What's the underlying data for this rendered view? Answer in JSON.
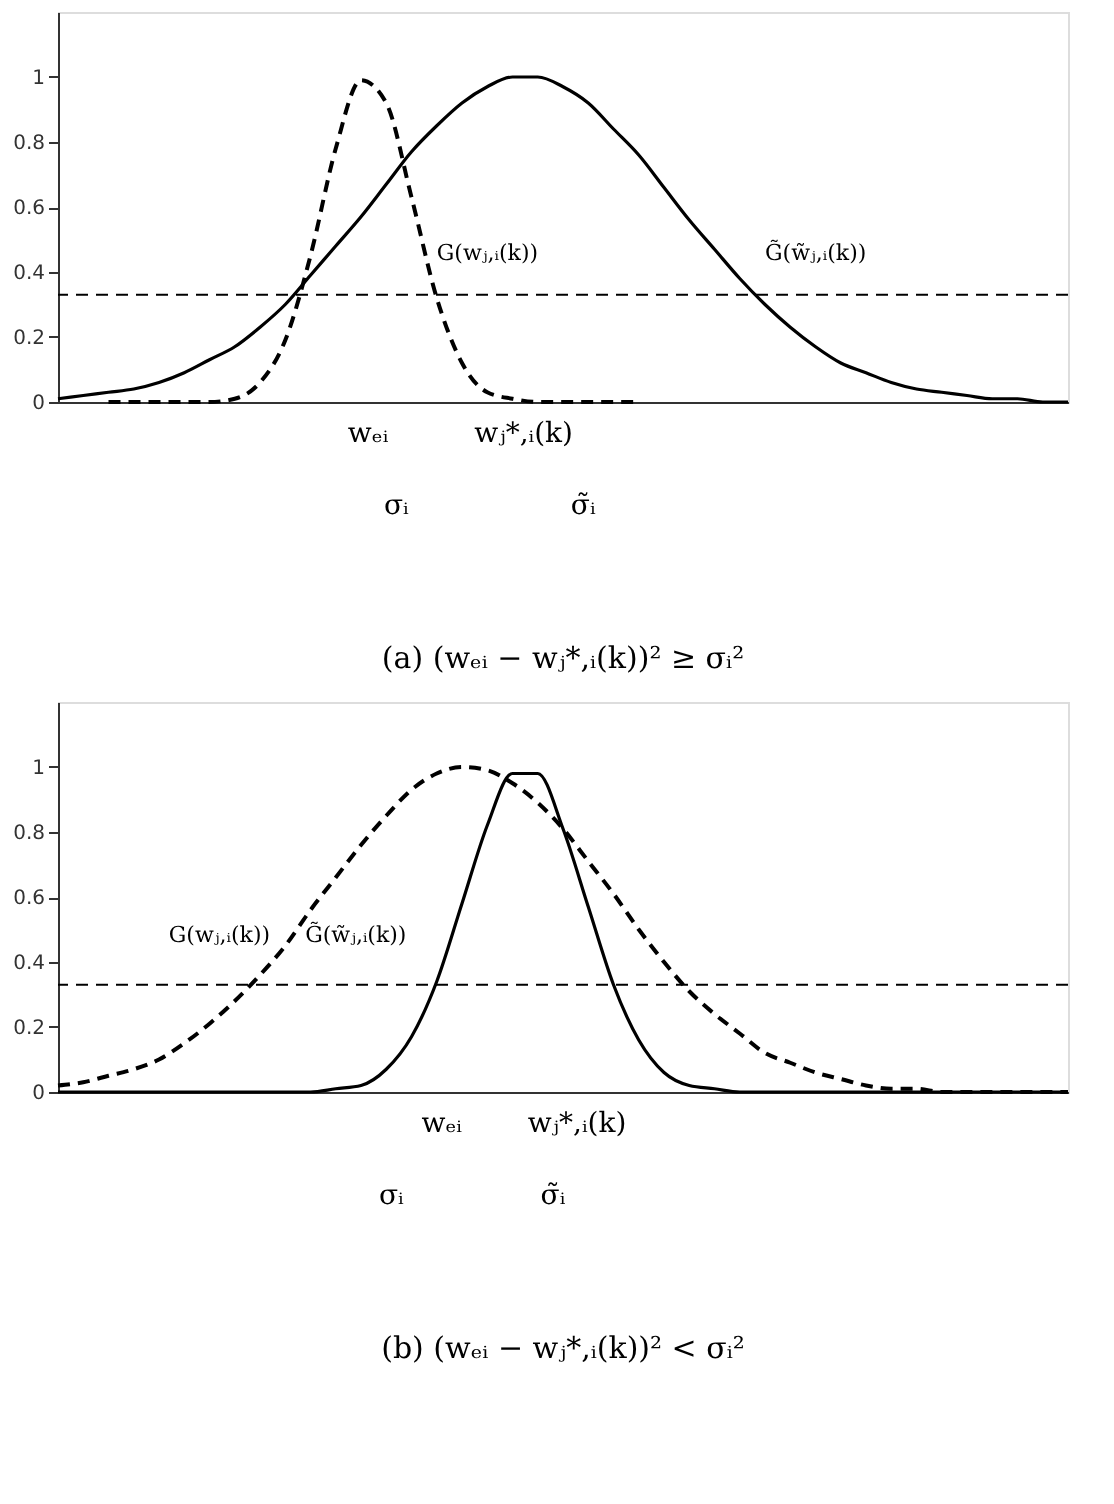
{
  "chart_data": [
    {
      "type": "line",
      "title": "(a) (wₑᵢ − wⱼ*,ᵢ(k))² ≥ σᵢ²",
      "categories": [
        null,
        null,
        null,
        null,
        null,
        null,
        null,
        null,
        null,
        null,
        null,
        null,
        null,
        null,
        null,
        null,
        null,
        null,
        null,
        null,
        null,
        null,
        null,
        null,
        null,
        null,
        null,
        null,
        null,
        null,
        null,
        null,
        null,
        null,
        null,
        null,
        null,
        null,
        null,
        null,
        null
      ],
      "series": [
        {
          "color": "#000000",
          "line_style": "dashed",
          "values": [
            null,
            null,
            0.0,
            0.0,
            0.0,
            0.0,
            0.0,
            0.01,
            0.06,
            0.19,
            0.45,
            0.78,
            0.99,
            0.92,
            0.63,
            0.32,
            0.12,
            0.03,
            0.01,
            0.0,
            0.0,
            0.0,
            0.0,
            0.0,
            null,
            null,
            null,
            null,
            null,
            null,
            null,
            null,
            null,
            null,
            null,
            null,
            null,
            null,
            null,
            null,
            null
          ]
        },
        {
          "color": "#000000",
          "line_style": "solid",
          "values": [
            0.01,
            0.02,
            0.03,
            0.04,
            0.06,
            0.09,
            0.13,
            0.17,
            0.23,
            0.3,
            0.39,
            0.48,
            0.57,
            0.67,
            0.77,
            0.85,
            0.92,
            0.97,
            1.0,
            1.0,
            0.97,
            0.92,
            0.84,
            0.76,
            0.66,
            0.56,
            0.47,
            0.38,
            0.3,
            0.23,
            0.17,
            0.12,
            0.09,
            0.06,
            0.04,
            0.03,
            0.02,
            0.01,
            0.01,
            0.0,
            0.0
          ]
        }
      ],
      "ylim": [
        0,
        1.2
      ],
      "yticks": [
        0,
        0.2,
        0.4,
        0.6,
        0.8,
        1
      ],
      "tick_labels": "y",
      "ref_lines": [
        {
          "axis": "y",
          "value": 0.33,
          "line_style": "dashed"
        }
      ],
      "annotations": [
        "wₑᵢ",
        "wⱼ*,ᵢ(k)",
        "G(wⱼ,ᵢ(k))",
        "G̃(w̃ⱼ,ᵢ(k))",
        "σᵢ",
        "σ̃ᵢ"
      ]
    },
    {
      "type": "line",
      "title": "(b) (wₑᵢ − wⱼ*,ᵢ(k))² < σᵢ²",
      "categories": [
        null,
        null,
        null,
        null,
        null,
        null,
        null,
        null,
        null,
        null,
        null,
        null,
        null,
        null,
        null,
        null,
        null,
        null,
        null,
        null,
        null,
        null,
        null,
        null,
        null,
        null,
        null,
        null,
        null,
        null,
        null,
        null,
        null,
        null,
        null,
        null,
        null,
        null,
        null,
        null,
        null
      ],
      "series": [
        {
          "color": "#000000",
          "line_style": "dashed",
          "values": [
            0.02,
            0.03,
            0.05,
            0.07,
            0.1,
            0.15,
            0.21,
            0.28,
            0.36,
            0.45,
            0.56,
            0.66,
            0.76,
            0.85,
            0.93,
            0.98,
            1.0,
            0.99,
            0.95,
            0.89,
            0.81,
            0.71,
            0.61,
            0.5,
            0.4,
            0.31,
            0.24,
            0.18,
            0.12,
            0.09,
            0.06,
            0.04,
            0.02,
            0.01,
            0.01,
            0.0,
            0.0,
            0.0,
            0.0,
            0.0,
            0.0
          ]
        },
        {
          "color": "#000000",
          "line_style": "solid",
          "values": [
            0.0,
            0.0,
            0.0,
            0.0,
            0.0,
            0.0,
            0.0,
            0.0,
            0.0,
            0.0,
            0.0,
            0.01,
            0.02,
            0.07,
            0.17,
            0.34,
            0.58,
            0.82,
            0.98,
            0.98,
            0.81,
            0.57,
            0.33,
            0.16,
            0.06,
            0.02,
            0.01,
            0.0,
            0.0,
            0.0,
            0.0,
            0.0,
            0.0,
            0.0,
            0.0,
            0.0,
            0.0,
            0.0,
            0.0,
            0.0,
            0.0
          ]
        }
      ],
      "ylim": [
        0,
        1.2
      ],
      "yticks": [
        0,
        0.2,
        0.4,
        0.6,
        0.8,
        1
      ],
      "tick_labels": "y",
      "ref_lines": [
        {
          "axis": "y",
          "value": 0.33,
          "line_style": "dashed"
        }
      ],
      "annotations": [
        "wₑᵢ",
        "wⱼ*,ᵢ(k)",
        "G(wⱼ,ᵢ(k))",
        "G̃(w̃ⱼ,ᵢ(k))",
        "σᵢ",
        "σ̃ᵢ"
      ]
    }
  ]
}
